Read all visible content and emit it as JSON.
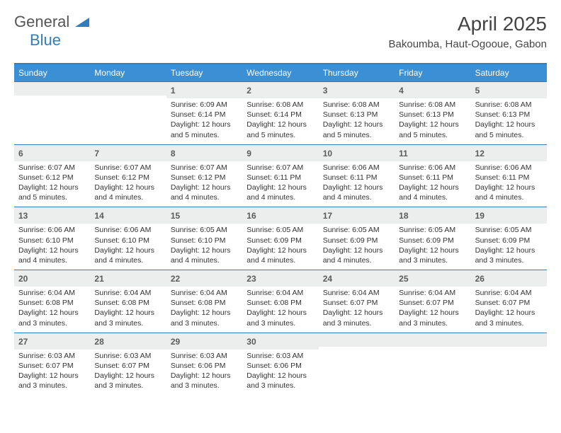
{
  "logo": {
    "line1": "General",
    "line2": "Blue"
  },
  "title": "April 2025",
  "subtitle": "Bakoumba, Haut-Ogooue, Gabon",
  "colors": {
    "header_bg": "#3b8fd4",
    "border": "#2f7fc0",
    "daynum_bg": "#eceded",
    "text": "#333333",
    "title": "#444444"
  },
  "weekdays": [
    "Sunday",
    "Monday",
    "Tuesday",
    "Wednesday",
    "Thursday",
    "Friday",
    "Saturday"
  ],
  "weeks": [
    [
      null,
      null,
      {
        "n": "1",
        "sr": "Sunrise: 6:09 AM",
        "ss": "Sunset: 6:14 PM",
        "dl1": "Daylight: 12 hours",
        "dl2": "and 5 minutes."
      },
      {
        "n": "2",
        "sr": "Sunrise: 6:08 AM",
        "ss": "Sunset: 6:14 PM",
        "dl1": "Daylight: 12 hours",
        "dl2": "and 5 minutes."
      },
      {
        "n": "3",
        "sr": "Sunrise: 6:08 AM",
        "ss": "Sunset: 6:13 PM",
        "dl1": "Daylight: 12 hours",
        "dl2": "and 5 minutes."
      },
      {
        "n": "4",
        "sr": "Sunrise: 6:08 AM",
        "ss": "Sunset: 6:13 PM",
        "dl1": "Daylight: 12 hours",
        "dl2": "and 5 minutes."
      },
      {
        "n": "5",
        "sr": "Sunrise: 6:08 AM",
        "ss": "Sunset: 6:13 PM",
        "dl1": "Daylight: 12 hours",
        "dl2": "and 5 minutes."
      }
    ],
    [
      {
        "n": "6",
        "sr": "Sunrise: 6:07 AM",
        "ss": "Sunset: 6:12 PM",
        "dl1": "Daylight: 12 hours",
        "dl2": "and 5 minutes."
      },
      {
        "n": "7",
        "sr": "Sunrise: 6:07 AM",
        "ss": "Sunset: 6:12 PM",
        "dl1": "Daylight: 12 hours",
        "dl2": "and 4 minutes."
      },
      {
        "n": "8",
        "sr": "Sunrise: 6:07 AM",
        "ss": "Sunset: 6:12 PM",
        "dl1": "Daylight: 12 hours",
        "dl2": "and 4 minutes."
      },
      {
        "n": "9",
        "sr": "Sunrise: 6:07 AM",
        "ss": "Sunset: 6:11 PM",
        "dl1": "Daylight: 12 hours",
        "dl2": "and 4 minutes."
      },
      {
        "n": "10",
        "sr": "Sunrise: 6:06 AM",
        "ss": "Sunset: 6:11 PM",
        "dl1": "Daylight: 12 hours",
        "dl2": "and 4 minutes."
      },
      {
        "n": "11",
        "sr": "Sunrise: 6:06 AM",
        "ss": "Sunset: 6:11 PM",
        "dl1": "Daylight: 12 hours",
        "dl2": "and 4 minutes."
      },
      {
        "n": "12",
        "sr": "Sunrise: 6:06 AM",
        "ss": "Sunset: 6:11 PM",
        "dl1": "Daylight: 12 hours",
        "dl2": "and 4 minutes."
      }
    ],
    [
      {
        "n": "13",
        "sr": "Sunrise: 6:06 AM",
        "ss": "Sunset: 6:10 PM",
        "dl1": "Daylight: 12 hours",
        "dl2": "and 4 minutes."
      },
      {
        "n": "14",
        "sr": "Sunrise: 6:06 AM",
        "ss": "Sunset: 6:10 PM",
        "dl1": "Daylight: 12 hours",
        "dl2": "and 4 minutes."
      },
      {
        "n": "15",
        "sr": "Sunrise: 6:05 AM",
        "ss": "Sunset: 6:10 PM",
        "dl1": "Daylight: 12 hours",
        "dl2": "and 4 minutes."
      },
      {
        "n": "16",
        "sr": "Sunrise: 6:05 AM",
        "ss": "Sunset: 6:09 PM",
        "dl1": "Daylight: 12 hours",
        "dl2": "and 4 minutes."
      },
      {
        "n": "17",
        "sr": "Sunrise: 6:05 AM",
        "ss": "Sunset: 6:09 PM",
        "dl1": "Daylight: 12 hours",
        "dl2": "and 4 minutes."
      },
      {
        "n": "18",
        "sr": "Sunrise: 6:05 AM",
        "ss": "Sunset: 6:09 PM",
        "dl1": "Daylight: 12 hours",
        "dl2": "and 3 minutes."
      },
      {
        "n": "19",
        "sr": "Sunrise: 6:05 AM",
        "ss": "Sunset: 6:09 PM",
        "dl1": "Daylight: 12 hours",
        "dl2": "and 3 minutes."
      }
    ],
    [
      {
        "n": "20",
        "sr": "Sunrise: 6:04 AM",
        "ss": "Sunset: 6:08 PM",
        "dl1": "Daylight: 12 hours",
        "dl2": "and 3 minutes."
      },
      {
        "n": "21",
        "sr": "Sunrise: 6:04 AM",
        "ss": "Sunset: 6:08 PM",
        "dl1": "Daylight: 12 hours",
        "dl2": "and 3 minutes."
      },
      {
        "n": "22",
        "sr": "Sunrise: 6:04 AM",
        "ss": "Sunset: 6:08 PM",
        "dl1": "Daylight: 12 hours",
        "dl2": "and 3 minutes."
      },
      {
        "n": "23",
        "sr": "Sunrise: 6:04 AM",
        "ss": "Sunset: 6:08 PM",
        "dl1": "Daylight: 12 hours",
        "dl2": "and 3 minutes."
      },
      {
        "n": "24",
        "sr": "Sunrise: 6:04 AM",
        "ss": "Sunset: 6:07 PM",
        "dl1": "Daylight: 12 hours",
        "dl2": "and 3 minutes."
      },
      {
        "n": "25",
        "sr": "Sunrise: 6:04 AM",
        "ss": "Sunset: 6:07 PM",
        "dl1": "Daylight: 12 hours",
        "dl2": "and 3 minutes."
      },
      {
        "n": "26",
        "sr": "Sunrise: 6:04 AM",
        "ss": "Sunset: 6:07 PM",
        "dl1": "Daylight: 12 hours",
        "dl2": "and 3 minutes."
      }
    ],
    [
      {
        "n": "27",
        "sr": "Sunrise: 6:03 AM",
        "ss": "Sunset: 6:07 PM",
        "dl1": "Daylight: 12 hours",
        "dl2": "and 3 minutes."
      },
      {
        "n": "28",
        "sr": "Sunrise: 6:03 AM",
        "ss": "Sunset: 6:07 PM",
        "dl1": "Daylight: 12 hours",
        "dl2": "and 3 minutes."
      },
      {
        "n": "29",
        "sr": "Sunrise: 6:03 AM",
        "ss": "Sunset: 6:06 PM",
        "dl1": "Daylight: 12 hours",
        "dl2": "and 3 minutes."
      },
      {
        "n": "30",
        "sr": "Sunrise: 6:03 AM",
        "ss": "Sunset: 6:06 PM",
        "dl1": "Daylight: 12 hours",
        "dl2": "and 3 minutes."
      },
      null,
      null,
      null
    ]
  ]
}
